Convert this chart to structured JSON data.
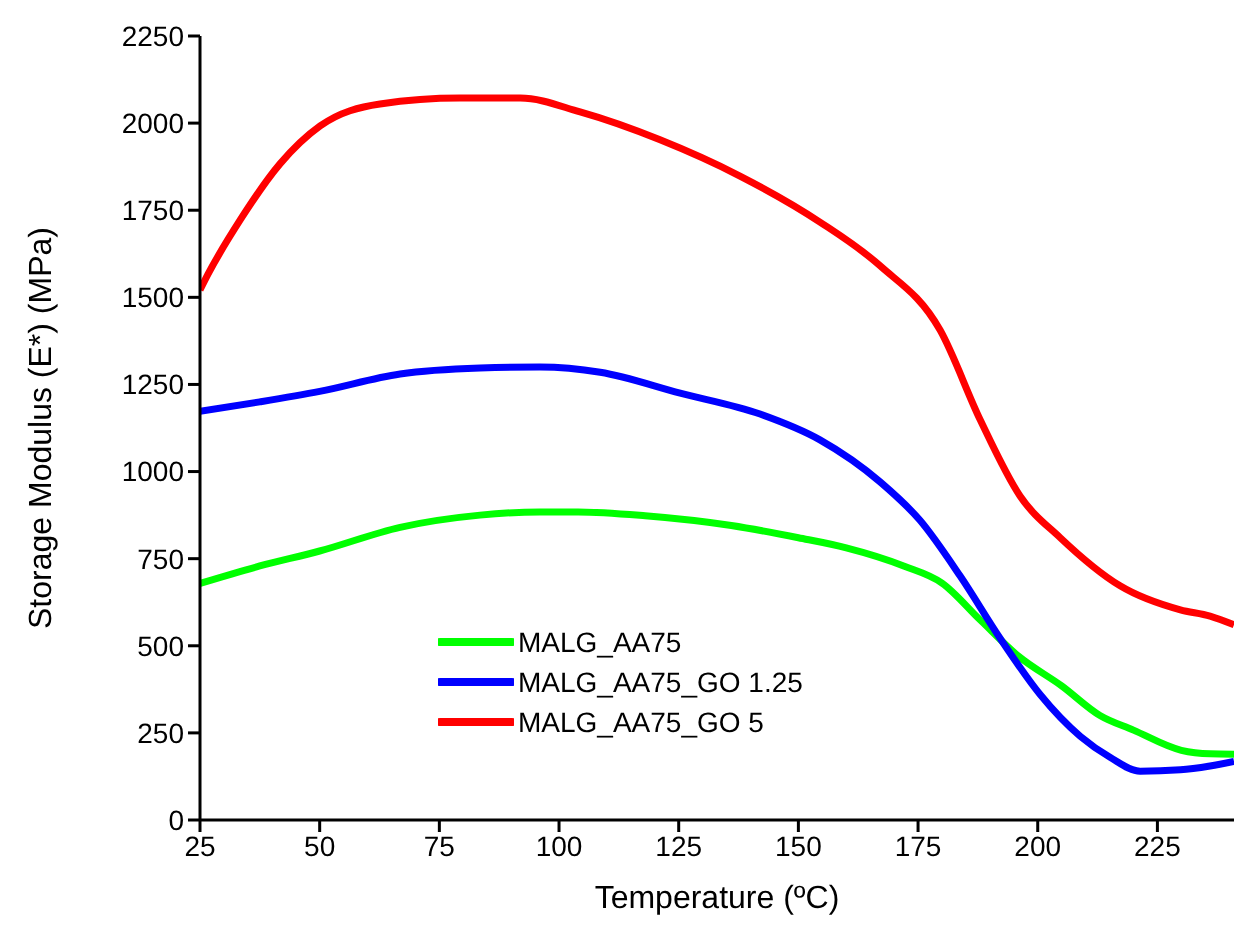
{
  "chart_data": {
    "type": "line",
    "xlabel": "Temperature (ºC)",
    "ylabel": "Storage Modulus (E*) (MPa)",
    "xlim": [
      25,
      241
    ],
    "xticks": [
      25,
      50,
      75,
      100,
      125,
      150,
      175,
      200,
      225
    ],
    "ylim": [
      0,
      2250
    ],
    "yticks": [
      0,
      250,
      500,
      750,
      1000,
      1250,
      1500,
      1750,
      2000,
      2250
    ],
    "grid": false,
    "legend": "bottom left",
    "marker": "none",
    "line_style": "solid",
    "series": [
      {
        "name": "MALG_AA75",
        "color": "#00ff00",
        "x": [
          25,
          37.5,
          50,
          66.8,
          83.5,
          96,
          104,
          118,
          136,
          150,
          160,
          172,
          180,
          188,
          196,
          205,
          213,
          220,
          230,
          236,
          241
        ],
        "values": [
          679,
          729,
          772,
          840,
          875,
          884,
          884,
          873,
          845,
          810,
          781,
          729,
          680,
          574,
          470,
          385,
          300,
          258,
          200,
          190,
          189
        ]
      },
      {
        "name": "MALG_AA75_GO 1.25",
        "color": "#0000ff",
        "x": [
          25,
          37.5,
          50,
          66.8,
          83.5,
          96,
          108.6,
          125.3,
          142,
          154.5,
          167.1,
          175.4,
          183.8,
          192.2,
          200.5,
          208.9,
          215.1,
          221.4,
          229.8,
          236,
          241
        ],
        "values": [
          1173,
          1200,
          1230,
          1280,
          1297,
          1300,
          1285,
          1225,
          1165,
          1091,
          970,
          860,
          700,
          520,
          360,
          240,
          180,
          140,
          144,
          155,
          168
        ]
      },
      {
        "name": "MALG_AA75_GO 5",
        "color": "#ff0000",
        "x": [
          25,
          26.7,
          33.4,
          41.7,
          50.1,
          62.6,
          79.3,
          91.9,
          104.4,
          121.1,
          137.8,
          154.5,
          167.1,
          179.6,
          188,
          196.3,
          204.7,
          217.2,
          229.8,
          236,
          241
        ],
        "values": [
          1521,
          1567,
          1722,
          1883,
          1992,
          2055,
          2072,
          2072,
          2032,
          1952,
          1848,
          1716,
          1590,
          1406,
          1148,
          930,
          810,
          672,
          603,
          585,
          560
        ]
      }
    ]
  }
}
